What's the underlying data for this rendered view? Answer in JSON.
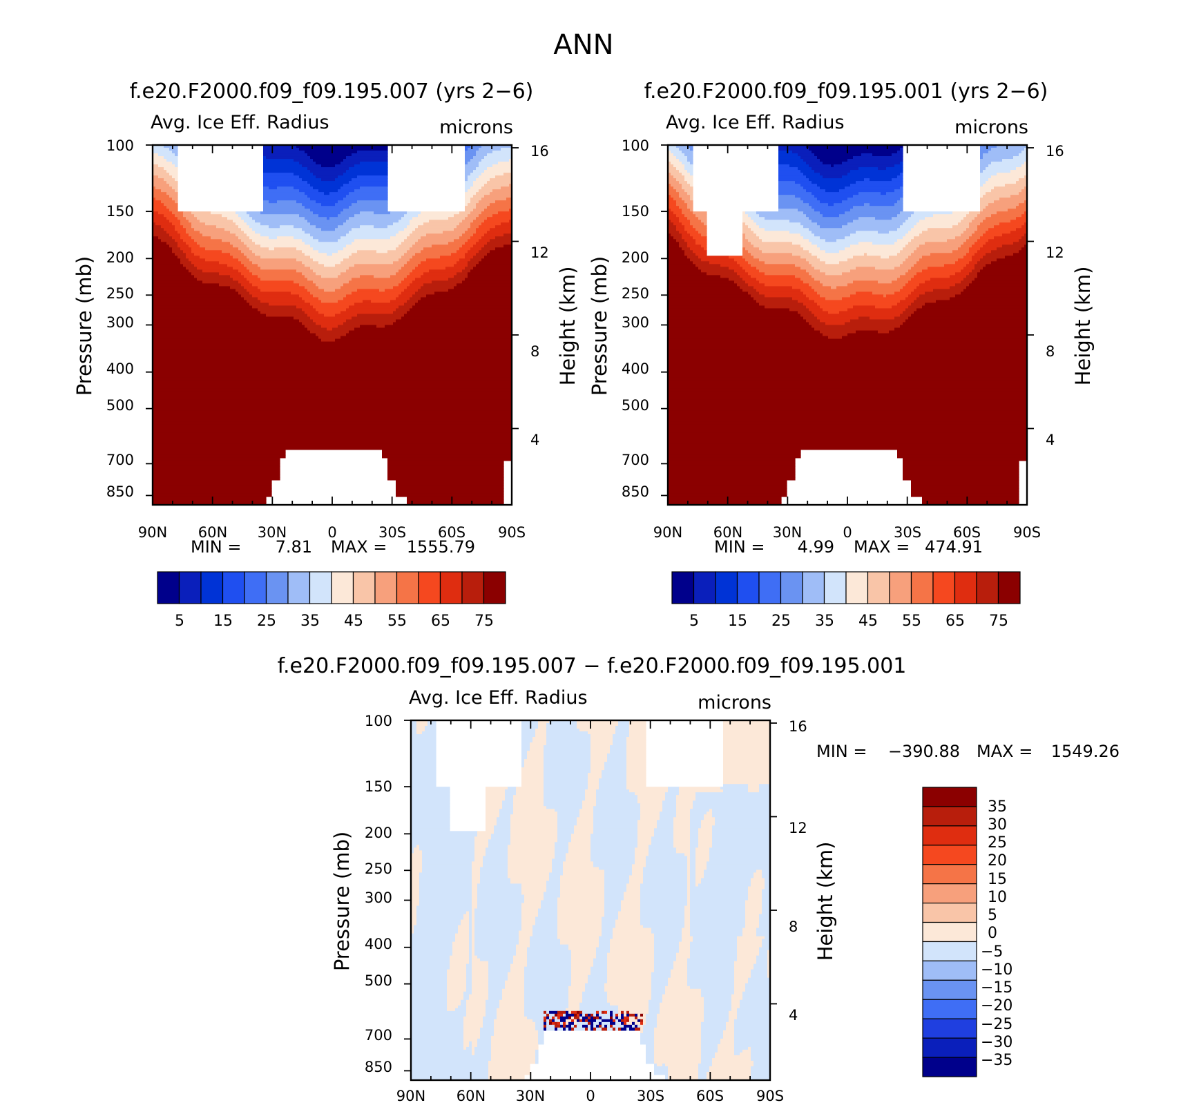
{
  "page_title": "ANN",
  "colors": {
    "ice": "#ffffff",
    "frame": "#000000",
    "abs_palette": [
      "#00008b",
      "#0a1fbb",
      "#0033d6",
      "#1f4ff0",
      "#3f6ef5",
      "#6a93f2",
      "#9fbdf7",
      "#d2e4fb",
      "#fce8d8",
      "#f9c5a8",
      "#f7a07c",
      "#f57447",
      "#f5481f",
      "#df2d10",
      "#b81e0c",
      "#8b0000"
    ],
    "diff_palette": [
      "#00008b",
      "#0a1fbb",
      "#1f3fe0",
      "#3f6ef5",
      "#6a93f2",
      "#9fbdf7",
      "#d2e4fb",
      "#fce8d8",
      "#f9c5a8",
      "#f7a07c",
      "#f57447",
      "#f5481f",
      "#df2d10",
      "#b81e0c",
      "#8b0000"
    ]
  },
  "chart_data": [
    {
      "type": "contour",
      "title": "f.e20.F2000.f09_f09.195.007 (yrs 2−6)",
      "left_string": "Avg. Ice Eff. Radius",
      "right_string": "microns",
      "ylabel": "Pressure (mb)",
      "ylabel_right": "Height (km)",
      "x_ticks": [
        "90N",
        "60N",
        "30N",
        "0",
        "30S",
        "60S",
        "90S"
      ],
      "y_ticks": [
        "100",
        "150",
        "200",
        "250",
        "300",
        "400",
        "500",
        "700",
        "850"
      ],
      "y_right_ticks": [
        "16",
        "12",
        "8",
        "4"
      ],
      "stats": {
        "min_label": "MIN =",
        "min": "7.81",
        "max_label": "MAX =",
        "max": "1555.79"
      },
      "colorbar_labels": [
        "5",
        "15",
        "25",
        "35",
        "45",
        "55",
        "65",
        "75"
      ],
      "contour_levels": [
        0,
        5,
        10,
        15,
        20,
        25,
        30,
        35,
        40,
        45,
        50,
        55,
        60,
        65,
        70,
        75
      ],
      "xlim": [
        -90,
        90
      ],
      "ylim": [
        100,
        900
      ]
    },
    {
      "type": "contour",
      "title": "f.e20.F2000.f09_f09.195.001 (yrs 2−6)",
      "left_string": "Avg. Ice Eff. Radius",
      "right_string": "microns",
      "ylabel": "Pressure (mb)",
      "ylabel_right": "Height (km)",
      "x_ticks": [
        "90N",
        "60N",
        "30N",
        "0",
        "30S",
        "60S",
        "90S"
      ],
      "y_ticks": [
        "100",
        "150",
        "200",
        "250",
        "300",
        "400",
        "500",
        "700",
        "850"
      ],
      "y_right_ticks": [
        "16",
        "12",
        "8",
        "4"
      ],
      "stats": {
        "min_label": "MIN =",
        "min": "4.99",
        "max_label": "MAX =",
        "max": "474.91"
      },
      "colorbar_labels": [
        "5",
        "15",
        "25",
        "35",
        "45",
        "55",
        "65",
        "75"
      ],
      "contour_levels": [
        0,
        5,
        10,
        15,
        20,
        25,
        30,
        35,
        40,
        45,
        50,
        55,
        60,
        65,
        70,
        75
      ],
      "xlim": [
        -90,
        90
      ],
      "ylim": [
        100,
        900
      ]
    },
    {
      "type": "contour",
      "title": "f.e20.F2000.f09_f09.195.007 − f.e20.F2000.f09_f09.195.001",
      "left_string": "Avg. Ice Eff. Radius",
      "right_string": "microns",
      "ylabel": "Pressure (mb)",
      "ylabel_right": "Height (km)",
      "x_ticks": [
        "90N",
        "60N",
        "30N",
        "0",
        "30S",
        "60S",
        "90S"
      ],
      "y_ticks": [
        "100",
        "150",
        "200",
        "250",
        "300",
        "400",
        "500",
        "700",
        "850"
      ],
      "y_right_ticks": [
        "16",
        "12",
        "8",
        "4"
      ],
      "stats": {
        "min_label": "MIN =",
        "min": "−390.88",
        "max_label": "MAX =",
        "max": "1549.26"
      },
      "colorbar_labels": [
        "35",
        "30",
        "25",
        "20",
        "15",
        "10",
        "5",
        "0",
        "−5",
        "−10",
        "−15",
        "−20",
        "−25",
        "−30",
        "−35"
      ],
      "contour_levels": [
        -35,
        -30,
        -25,
        -20,
        -15,
        -10,
        -5,
        0,
        5,
        10,
        15,
        20,
        25,
        30,
        35
      ],
      "xlim": [
        -90,
        90
      ],
      "ylim": [
        100,
        900
      ]
    }
  ]
}
